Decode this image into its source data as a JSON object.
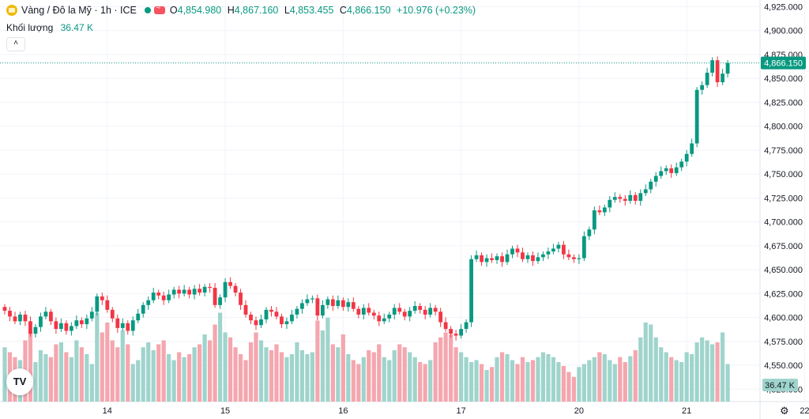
{
  "header": {
    "title": "Vàng / Đô la Mỹ · 1h · ICE",
    "open_label": "O",
    "open": "4,854.980",
    "high_label": "H",
    "high": "4,867.160",
    "low_label": "L",
    "low": "4,853.455",
    "close_label": "C",
    "close": "4,866.150",
    "change": "+10.976 (+0.23%)"
  },
  "volume": {
    "label": "Khối lượng",
    "value": "36.47 K"
  },
  "collapse_icon": "chevron-up-icon",
  "logo_text": "TV",
  "colors": {
    "up": "#089981",
    "down": "#f23645",
    "vol_up": "#9fd4cc",
    "vol_down": "#f5a6ae",
    "grid": "#f0f3fa"
  },
  "chart_data": {
    "type": "candlestick",
    "symbol": "Vàng / Đô la Mỹ",
    "interval": "1h",
    "exchange": "ICE",
    "y_range": [
      4512,
      4932
    ],
    "y_ticks": [
      4525,
      4550,
      4575,
      4600,
      4625,
      4650,
      4675,
      4700,
      4725,
      4750,
      4775,
      4800,
      4825,
      4850,
      4875,
      4900,
      4925
    ],
    "y_tick_labels": [
      "4,525.000",
      "4,550.000",
      "4,575.000",
      "4,600.000",
      "4,625.000",
      "4,650.000",
      "4,675.000",
      "4,700.000",
      "4,725.000",
      "4,750.000",
      "4,775.000",
      "4,800.000",
      "4,825.000",
      "4,850.000",
      "4,875.000",
      "4,900.000",
      "4,925.000"
    ],
    "x_tick_labels": [
      {
        "label": "14",
        "index": 20
      },
      {
        "label": "15",
        "index": 43
      },
      {
        "label": "16",
        "index": 66
      },
      {
        "label": "17",
        "index": 89
      },
      {
        "label": "20",
        "index": 112
      },
      {
        "label": "21",
        "index": 133
      },
      {
        "label": "22",
        "index": 156
      }
    ],
    "last_price": 4866.15,
    "last_price_label": "4,866.150",
    "last_volume_label": "36.47 K",
    "volume_max": 100,
    "closes": [
      4607,
      4601,
      4596,
      4603,
      4596,
      4583,
      4590,
      4601,
      4606,
      4596,
      4588,
      4594,
      4586,
      4591,
      4597,
      4593,
      4599,
      4606,
      4622,
      4618,
      4608,
      4599,
      4589,
      4594,
      4586,
      4597,
      4604,
      4613,
      4618,
      4626,
      4623,
      4618,
      4624,
      4629,
      4625,
      4629,
      4624,
      4630,
      4626,
      4632,
      4631,
      4613,
      4621,
      4637,
      4633,
      4626,
      4613,
      4603,
      4597,
      4592,
      4598,
      4608,
      4606,
      4601,
      4593,
      4596,
      4603,
      4609,
      4615,
      4619,
      4620,
      4602,
      4613,
      4619,
      4612,
      4618,
      4611,
      4616,
      4609,
      4603,
      4610,
      4605,
      4602,
      4596,
      4599,
      4603,
      4610,
      4606,
      4601,
      4607,
      4612,
      4608,
      4603,
      4610,
      4606,
      4595,
      4588,
      4583,
      4581,
      4588,
      4595,
      4661,
      4665,
      4658,
      4662,
      4660,
      4664,
      4658,
      4666,
      4672,
      4668,
      4661,
      4665,
      4659,
      4663,
      4666,
      4669,
      4672,
      4676,
      4666,
      4663,
      4661,
      4662,
      4685,
      4692,
      4712,
      4710,
      4715,
      4723,
      4726,
      4724,
      4722,
      4728,
      4722,
      4730,
      4734,
      4742,
      4748,
      4753,
      4756,
      4751,
      4757,
      4763,
      4771,
      4782,
      4838,
      4843,
      4856,
      4869,
      4846,
      4855,
      4866.15
    ],
    "opens": [
      4611,
      4607,
      4601,
      4596,
      4603,
      4596,
      4583,
      4590,
      4601,
      4606,
      4596,
      4588,
      4594,
      4586,
      4591,
      4597,
      4593,
      4599,
      4606,
      4622,
      4618,
      4608,
      4599,
      4589,
      4594,
      4586,
      4597,
      4604,
      4613,
      4618,
      4626,
      4623,
      4618,
      4624,
      4629,
      4625,
      4629,
      4624,
      4630,
      4626,
      4632,
      4631,
      4613,
      4621,
      4637,
      4633,
      4626,
      4613,
      4603,
      4597,
      4592,
      4598,
      4608,
      4606,
      4601,
      4593,
      4596,
      4603,
      4609,
      4615,
      4619,
      4620,
      4602,
      4613,
      4619,
      4612,
      4618,
      4611,
      4616,
      4609,
      4603,
      4610,
      4605,
      4602,
      4596,
      4599,
      4603,
      4610,
      4606,
      4601,
      4607,
      4612,
      4608,
      4603,
      4610,
      4606,
      4595,
      4588,
      4583,
      4581,
      4588,
      4595,
      4661,
      4665,
      4658,
      4662,
      4660,
      4664,
      4658,
      4666,
      4672,
      4668,
      4661,
      4665,
      4659,
      4663,
      4666,
      4669,
      4672,
      4676,
      4666,
      4663,
      4661,
      4662,
      4685,
      4692,
      4712,
      4710,
      4715,
      4723,
      4726,
      4724,
      4722,
      4728,
      4722,
      4730,
      4734,
      4742,
      4748,
      4753,
      4756,
      4751,
      4757,
      4763,
      4771,
      4782,
      4838,
      4843,
      4856,
      4869,
      4846,
      4855
    ],
    "volumes": [
      55,
      50,
      45,
      42,
      62,
      70,
      40,
      52,
      48,
      45,
      58,
      60,
      50,
      45,
      62,
      55,
      48,
      38,
      90,
      70,
      80,
      62,
      55,
      72,
      58,
      38,
      42,
      55,
      60,
      52,
      58,
      62,
      48,
      42,
      50,
      45,
      48,
      55,
      58,
      68,
      62,
      78,
      90,
      70,
      65,
      55,
      48,
      42,
      60,
      70,
      62,
      55,
      52,
      58,
      50,
      45,
      48,
      60,
      52,
      48,
      50,
      82,
      72,
      85,
      58,
      55,
      68,
      48,
      42,
      38,
      45,
      52,
      50,
      58,
      45,
      42,
      52,
      58,
      55,
      50,
      45,
      40,
      38,
      42,
      60,
      65,
      70,
      68,
      55,
      50,
      45,
      40,
      42,
      38,
      32,
      35,
      45,
      50,
      48,
      42,
      38,
      45,
      40,
      42,
      45,
      50,
      48,
      45,
      40,
      36,
      30,
      25,
      35,
      38,
      42,
      45,
      50,
      48,
      42,
      38,
      45,
      40,
      46,
      52,
      65,
      80,
      78,
      65,
      55,
      50,
      45,
      42,
      40,
      50,
      48,
      60,
      65,
      62,
      58,
      60,
      70,
      38
    ],
    "volume_up": [
      true,
      false,
      false,
      true,
      false,
      false,
      true,
      true,
      true,
      false,
      false,
      true,
      false,
      true,
      true,
      false,
      true,
      true,
      true,
      false,
      false,
      false,
      false,
      true,
      false,
      true,
      true,
      true,
      true,
      true,
      false,
      false,
      true,
      true,
      false,
      true,
      false,
      true,
      false,
      true,
      false,
      false,
      true,
      true,
      false,
      false,
      false,
      false,
      false,
      false,
      true,
      true,
      false,
      false,
      false,
      true,
      true,
      true,
      true,
      true,
      true,
      false,
      true,
      true,
      false,
      true,
      false,
      true,
      false,
      false,
      true,
      false,
      false,
      false,
      true,
      true,
      true,
      false,
      false,
      true,
      true,
      false,
      false,
      true,
      false,
      false,
      false,
      false,
      false,
      true,
      true,
      true,
      true,
      false,
      true,
      false,
      true,
      false,
      true,
      true,
      false,
      false,
      true,
      false,
      true,
      true,
      true,
      true,
      true,
      false,
      false,
      false,
      true,
      true,
      true,
      true,
      false,
      true,
      true,
      true,
      false,
      false,
      true,
      false,
      true,
      true,
      true,
      true,
      true,
      true,
      false,
      true,
      true,
      true,
      true,
      true,
      true,
      true,
      true,
      false,
      true,
      true
    ]
  }
}
